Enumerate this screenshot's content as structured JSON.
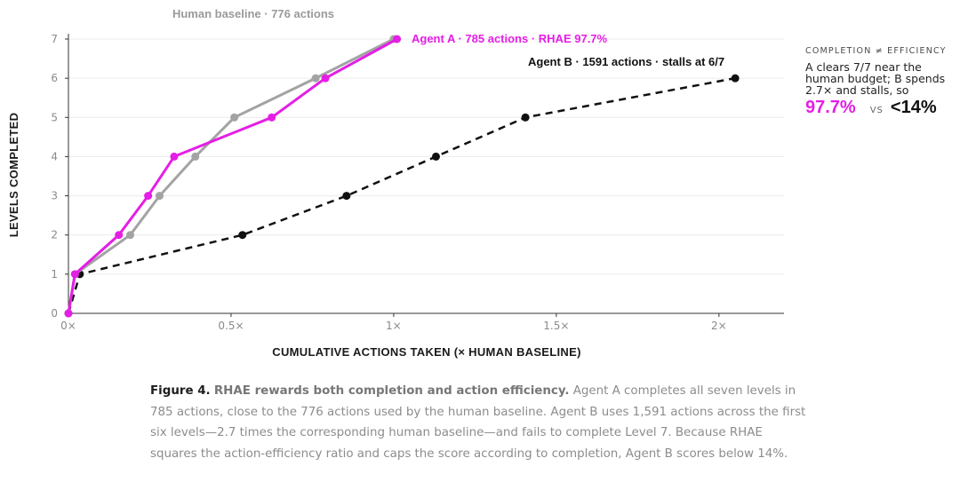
{
  "chart_data": {
    "type": "line",
    "title": "Human baseline · 776 actions",
    "xlabel": "CUMULATIVE ACTIONS TAKEN (× HUMAN BASELINE)",
    "ylabel": "LEVELS COMPLETED",
    "xlim": [
      0,
      2.2
    ],
    "ylim": [
      0,
      7
    ],
    "x_ticks": [
      {
        "value": 0,
        "label": "0×"
      },
      {
        "value": 0.5,
        "label": "0.5×"
      },
      {
        "value": 1,
        "label": "1×"
      },
      {
        "value": 1.5,
        "label": "1.5×"
      },
      {
        "value": 2,
        "label": "2×"
      }
    ],
    "y_ticks": [
      0,
      1,
      2,
      3,
      4,
      5,
      6,
      7
    ],
    "grid": "horizontal",
    "series": [
      {
        "id": "human",
        "color": "#a3a3a3",
        "dashed": false,
        "x": [
          0,
          0.02,
          0.19,
          0.28,
          0.39,
          0.51,
          0.76,
          1.0
        ],
        "y": [
          0,
          1,
          2,
          3,
          4,
          5,
          6,
          7
        ]
      },
      {
        "id": "agent_a",
        "name": "Agent A · 785 actions · RHAE 97.7%",
        "color": "#e51ee5",
        "dashed": false,
        "x": [
          0,
          0.02,
          0.155,
          0.245,
          0.325,
          0.625,
          0.79,
          1.01
        ],
        "y": [
          0,
          1,
          2,
          3,
          4,
          5,
          6,
          7
        ]
      },
      {
        "id": "agent_b",
        "name": "Agent B · 1591 actions · stalls at 6/7",
        "color": "#111111",
        "dashed": true,
        "x": [
          0,
          0.035,
          0.535,
          0.855,
          1.13,
          1.405,
          2.05
        ],
        "y": [
          0,
          1,
          2,
          3,
          4,
          5,
          6
        ]
      }
    ]
  },
  "side_note": {
    "heading": "COMPLETION ≠ EFFICIENCY",
    "body": "A clears 7/7 near the human budget; B spends 2.7× and stalls, so",
    "value_a": "97.7%",
    "vs": "VS",
    "value_b": "<14%"
  },
  "caption": {
    "figure": "Figure 4.",
    "lead": "RHAE rewards both completion and action efficiency.",
    "text": "Agent A completes all seven levels in 785 actions, close to the 776 actions used by the human baseline. Agent B uses 1,591 actions across the first six levels—2.7 times the corresponding human baseline—and fails to complete Level 7. Because RHAE squares the action-efficiency ratio and caps the score according to completion, Agent B scores below 14%."
  }
}
